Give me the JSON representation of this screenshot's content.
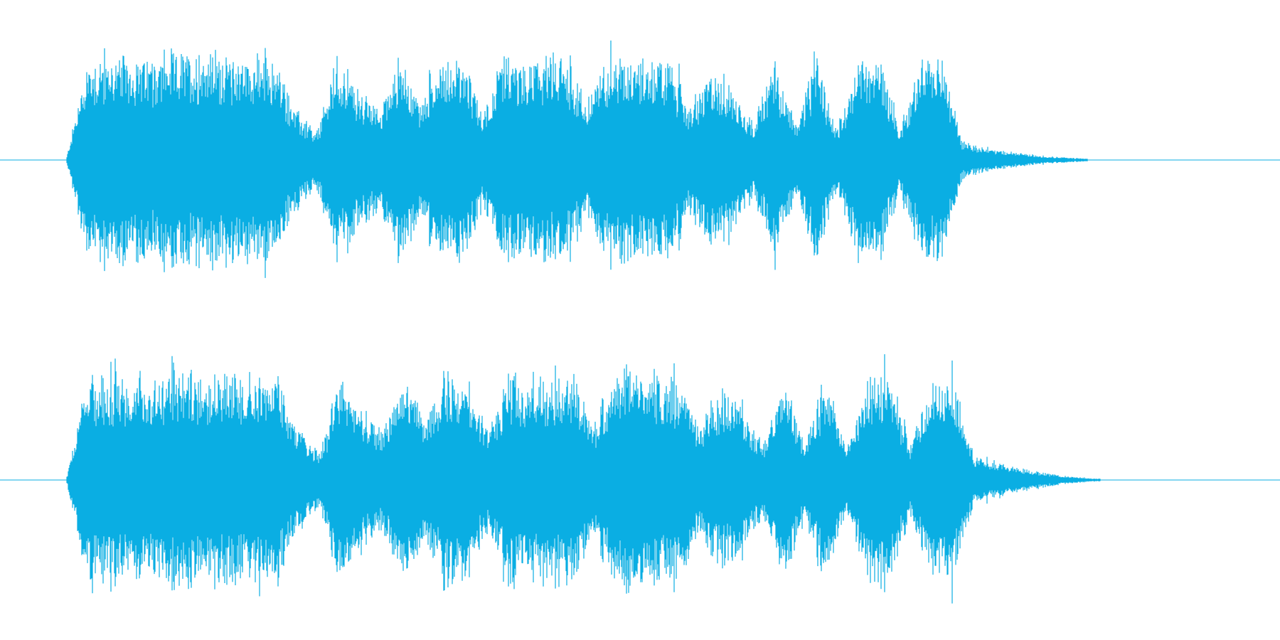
{
  "waveform": {
    "color": "#0aaee3",
    "background": "#ffffff",
    "channels": [
      {
        "name": "",
        "envelope": [
          0.0,
          0.78,
          0.8,
          0.82,
          0.76,
          0.84,
          0.83,
          0.86,
          0.8,
          0.82,
          0.78,
          0.4,
          0.2,
          0.8,
          0.55,
          0.4,
          0.82,
          0.45,
          0.8,
          0.78,
          0.38,
          0.8,
          0.75,
          0.82,
          0.8,
          0.45,
          0.82,
          0.83,
          0.8,
          0.78,
          0.4,
          0.7,
          0.55,
          0.3,
          0.78,
          0.3,
          0.78,
          0.25,
          0.8,
          0.82,
          0.25,
          0.78,
          0.8,
          0.15,
          0.1,
          0.07,
          0.05,
          0.03,
          0.02,
          0.01
        ],
        "end_fraction": 0.705
      },
      {
        "name": "",
        "envelope": [
          0.0,
          0.78,
          0.82,
          0.8,
          0.78,
          0.85,
          0.84,
          0.86,
          0.82,
          0.83,
          0.78,
          0.4,
          0.22,
          0.8,
          0.55,
          0.4,
          0.82,
          0.45,
          0.85,
          0.8,
          0.4,
          0.82,
          0.76,
          0.83,
          0.82,
          0.45,
          0.83,
          0.86,
          0.82,
          0.8,
          0.42,
          0.72,
          0.58,
          0.3,
          0.8,
          0.32,
          0.8,
          0.28,
          0.82,
          0.84,
          0.28,
          0.78,
          0.82,
          0.2,
          0.14,
          0.1,
          0.07,
          0.04,
          0.02,
          0.01
        ],
        "end_fraction": 0.715
      }
    ]
  }
}
